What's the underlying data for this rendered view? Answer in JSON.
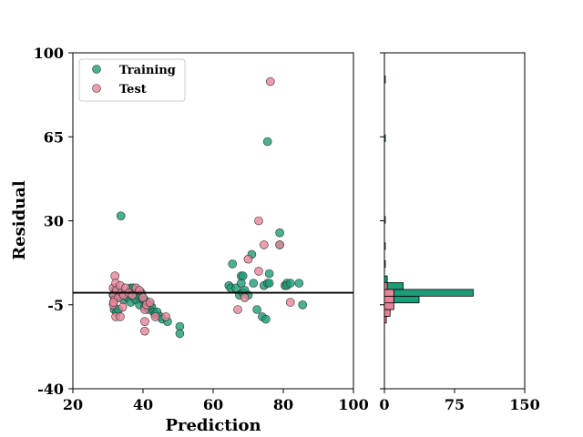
{
  "chart_data": {
    "type": "scatter",
    "xlabel": "Prediction",
    "ylabel": "Residual",
    "xlim": [
      20,
      100
    ],
    "ylim": [
      -40,
      100
    ],
    "xticks": [
      "20",
      "40",
      "60",
      "80",
      "100"
    ],
    "yticks": [
      "-40",
      "-5",
      "30",
      "65",
      "100"
    ],
    "reference_line_y": 0,
    "legend_position": "top-left",
    "series": [
      {
        "name": "Training",
        "color": "#1b9e77",
        "points": [
          [
            31.5,
            -1
          ],
          [
            32,
            1
          ],
          [
            32.5,
            0
          ],
          [
            33,
            -2
          ],
          [
            33.5,
            -1
          ],
          [
            34,
            0
          ],
          [
            34.5,
            -3
          ],
          [
            35,
            -1
          ],
          [
            35.5,
            -2
          ],
          [
            36,
            0
          ],
          [
            36.5,
            -4
          ],
          [
            37,
            1
          ],
          [
            37.5,
            -2
          ],
          [
            38,
            -3
          ],
          [
            38.5,
            -1
          ],
          [
            39,
            -5
          ],
          [
            39.5,
            0
          ],
          [
            40,
            -3
          ],
          [
            40.5,
            -6
          ],
          [
            41,
            -4
          ],
          [
            41.5,
            -7
          ],
          [
            42,
            -5
          ],
          [
            42.5,
            -6
          ],
          [
            43,
            -8
          ],
          [
            43.5,
            -9
          ],
          [
            44,
            -8
          ],
          [
            45,
            -10
          ],
          [
            45.5,
            -11
          ],
          [
            47,
            -12
          ],
          [
            50.5,
            -14
          ],
          [
            50.5,
            -17
          ],
          [
            33.7,
            32
          ],
          [
            36.5,
            2
          ],
          [
            37.2,
            2
          ],
          [
            39.5,
            -1
          ],
          [
            40.5,
            -3
          ],
          [
            31.8,
            -7
          ],
          [
            32.5,
            -8
          ],
          [
            33,
            -7
          ],
          [
            65.5,
            12
          ],
          [
            64.5,
            3
          ],
          [
            65,
            2
          ],
          [
            66.5,
            2
          ],
          [
            67.5,
            -1
          ],
          [
            68,
            4
          ],
          [
            68.5,
            0
          ],
          [
            69,
            1
          ],
          [
            70,
            -1
          ],
          [
            71.5,
            4
          ],
          [
            71,
            16
          ],
          [
            72.5,
            -7
          ],
          [
            74,
            -10
          ],
          [
            75,
            -11
          ],
          [
            74.5,
            3
          ],
          [
            75.5,
            4
          ],
          [
            76,
            8
          ],
          [
            76,
            4
          ],
          [
            79,
            25
          ],
          [
            79,
            20
          ],
          [
            80.5,
            3
          ],
          [
            81,
            4
          ],
          [
            81,
            3
          ],
          [
            82,
            4
          ],
          [
            84.5,
            4
          ],
          [
            85.5,
            -5
          ],
          [
            68,
            7
          ],
          [
            68.5,
            7
          ],
          [
            75.5,
            63
          ]
        ]
      },
      {
        "name": "Test",
        "color": "#e7849a",
        "points": [
          [
            31.5,
            2
          ],
          [
            31.7,
            -1
          ],
          [
            31.8,
            -3
          ],
          [
            32,
            7
          ],
          [
            32.2,
            4
          ],
          [
            32.5,
            1
          ],
          [
            33,
            -2
          ],
          [
            33.5,
            3
          ],
          [
            34,
            0
          ],
          [
            34.5,
            -1
          ],
          [
            35,
            2
          ],
          [
            36,
            0
          ],
          [
            37,
            -1
          ],
          [
            38,
            2
          ],
          [
            39,
            1
          ],
          [
            40,
            -2
          ],
          [
            40.5,
            -7
          ],
          [
            41,
            -5
          ],
          [
            42,
            -4
          ],
          [
            43.5,
            -10
          ],
          [
            46.5,
            -10
          ],
          [
            40.5,
            -12
          ],
          [
            40.5,
            -16
          ],
          [
            32.2,
            -10
          ],
          [
            33.5,
            -10
          ],
          [
            34.2,
            -6
          ],
          [
            31.5,
            -5
          ],
          [
            31.6,
            -4
          ],
          [
            67,
            -7
          ],
          [
            69,
            -2
          ],
          [
            70,
            14
          ],
          [
            73,
            30
          ],
          [
            73,
            9
          ],
          [
            74.5,
            20
          ],
          [
            76.3,
            88
          ],
          [
            79,
            20
          ],
          [
            82,
            -4
          ]
        ]
      }
    ],
    "histogram": {
      "xlim": [
        0,
        150
      ],
      "xticks": [
        "0",
        "75",
        "150"
      ],
      "bin_width": 2.8,
      "training_counts": [
        {
          "bin_start": -9.8,
          "count": 3
        },
        {
          "bin_start": -7.0,
          "count": 8
        },
        {
          "bin_start": -4.2,
          "count": 37
        },
        {
          "bin_start": -1.4,
          "count": 95
        },
        {
          "bin_start": 1.4,
          "count": 20
        },
        {
          "bin_start": 4.2,
          "count": 3
        },
        {
          "bin_start": 10.6,
          "count": 1
        },
        {
          "bin_start": 63.0,
          "count": 1
        },
        {
          "bin_start": 87.5,
          "count": 1
        }
      ],
      "test_counts": [
        {
          "bin_start": -12.6,
          "count": 2
        },
        {
          "bin_start": -9.8,
          "count": 6
        },
        {
          "bin_start": -7.0,
          "count": 10
        },
        {
          "bin_start": -4.2,
          "count": 10
        },
        {
          "bin_start": -1.4,
          "count": 10
        },
        {
          "bin_start": 1.4,
          "count": 3
        },
        {
          "bin_start": 18.0,
          "count": 1
        },
        {
          "bin_start": 29.0,
          "count": 1
        }
      ]
    }
  }
}
